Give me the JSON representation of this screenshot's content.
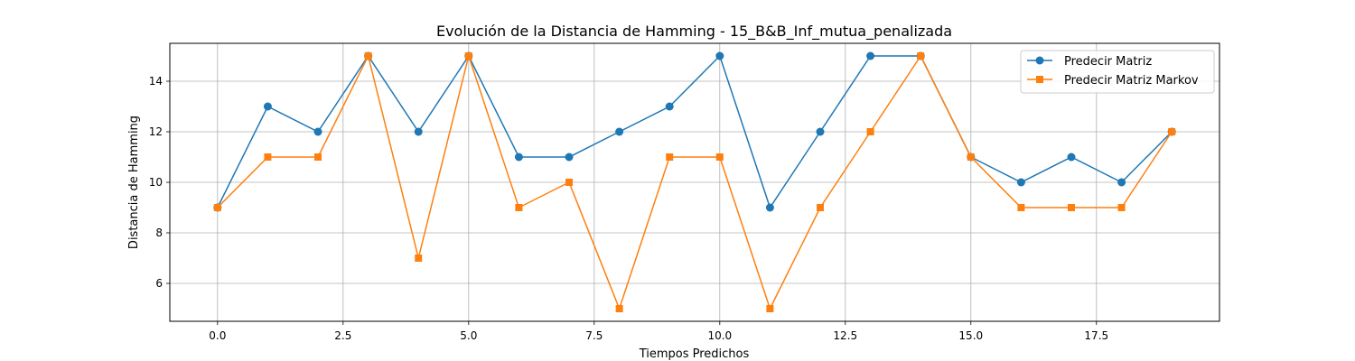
{
  "chart_data": {
    "type": "line",
    "title": "Evolución de la Distancia de Hamming - 15_B&B_Inf_mutua_penalizada",
    "xlabel": "Tiempos Predichos",
    "ylabel": "Distancia de Hamming",
    "xlim": [
      -0.95,
      19.95
    ],
    "ylim": [
      4.5,
      15.5
    ],
    "x_ticks": [
      "0.0",
      "2.5",
      "5.0",
      "7.5",
      "10.0",
      "12.5",
      "15.0",
      "17.5"
    ],
    "y_ticks": [
      "6",
      "8",
      "10",
      "12",
      "14"
    ],
    "x_tick_values": [
      0,
      2.5,
      5,
      7.5,
      10,
      12.5,
      15,
      17.5
    ],
    "y_tick_values": [
      6,
      8,
      10,
      12,
      14
    ],
    "grid": true,
    "legend_position": "top-right",
    "x": [
      0,
      1,
      2,
      3,
      4,
      5,
      6,
      7,
      8,
      9,
      10,
      11,
      12,
      13,
      14,
      15,
      16,
      17,
      18,
      19
    ],
    "series": [
      {
        "name": "Predecir Matriz",
        "color": "#1f77b4",
        "marker": "circle",
        "values": [
          9,
          13,
          12,
          15,
          12,
          15,
          11,
          11,
          12,
          13,
          15,
          9,
          12,
          15,
          15,
          11,
          10,
          11,
          10,
          12
        ]
      },
      {
        "name": "Predecir Matriz Markov",
        "color": "#ff7f0e",
        "marker": "square",
        "values": [
          9,
          11,
          11,
          15,
          7,
          15,
          9,
          10,
          5,
          11,
          11,
          5,
          9,
          12,
          15,
          11,
          9,
          9,
          9,
          12
        ]
      }
    ]
  }
}
